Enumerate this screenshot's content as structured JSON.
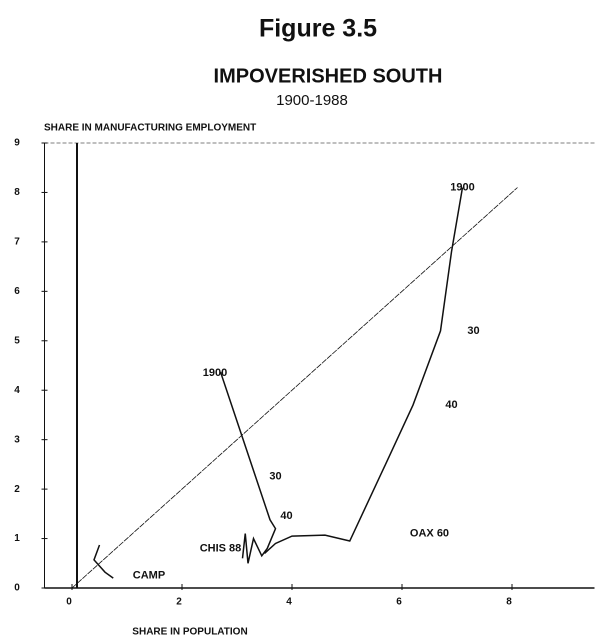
{
  "chart_data": {
    "type": "line",
    "title": "Figure 3.5",
    "subtitle": "IMPOVERISHED SOUTH",
    "period": "1900-1988",
    "y_label": "SHARE IN MANUFACTURING EMPLOYMENT",
    "x_label": "SHARE IN POPULATION",
    "xlim": [
      -0.5,
      9.5
    ],
    "ylim": [
      0,
      9
    ],
    "xticks": [
      0,
      2,
      4,
      6,
      8
    ],
    "yticks": [
      0,
      1,
      2,
      3,
      4,
      5,
      6,
      7,
      8,
      9
    ],
    "color": "#111111",
    "series": [
      {
        "name": "OAX",
        "x": [
          7.1,
          6.9,
          6.7,
          6.2,
          5.7,
          5.05,
          4.6,
          4.0,
          3.7,
          3.5
        ],
        "values": [
          8.1,
          6.8,
          5.2,
          3.7,
          2.5,
          0.95,
          1.07,
          1.05,
          0.9,
          0.7
        ]
      },
      {
        "name": "CHIS",
        "x": [
          2.7,
          3.6,
          3.7,
          3.55,
          3.45,
          3.3,
          3.2,
          3.15,
          3.1
        ],
        "values": [
          4.37,
          1.38,
          1.2,
          0.8,
          0.65,
          1.0,
          0.5,
          1.1,
          0.6
        ]
      },
      {
        "name": "CAMP",
        "x": [
          0.5,
          0.4,
          0.6,
          0.75
        ],
        "values": [
          0.87,
          0.57,
          0.32,
          0.2
        ]
      },
      {
        "name": "45-degree",
        "x": [
          0,
          8.1
        ],
        "values": [
          0,
          8.1
        ]
      }
    ],
    "annotations": [
      {
        "text": "1900",
        "x": 7.1,
        "y": 8.1
      },
      {
        "text": "30",
        "x": 7.3,
        "y": 5.2
      },
      {
        "text": "40",
        "x": 6.9,
        "y": 3.7
      },
      {
        "text": "OAX 60",
        "x": 6.5,
        "y": 1.1
      },
      {
        "text": "1900",
        "x": 2.6,
        "y": 4.35
      },
      {
        "text": "30",
        "x": 3.7,
        "y": 2.25
      },
      {
        "text": "40",
        "x": 3.9,
        "y": 1.45
      },
      {
        "text": "CHIS 88",
        "x": 2.7,
        "y": 0.8
      },
      {
        "text": "CAMP",
        "x": 1.4,
        "y": 0.25
      }
    ]
  }
}
